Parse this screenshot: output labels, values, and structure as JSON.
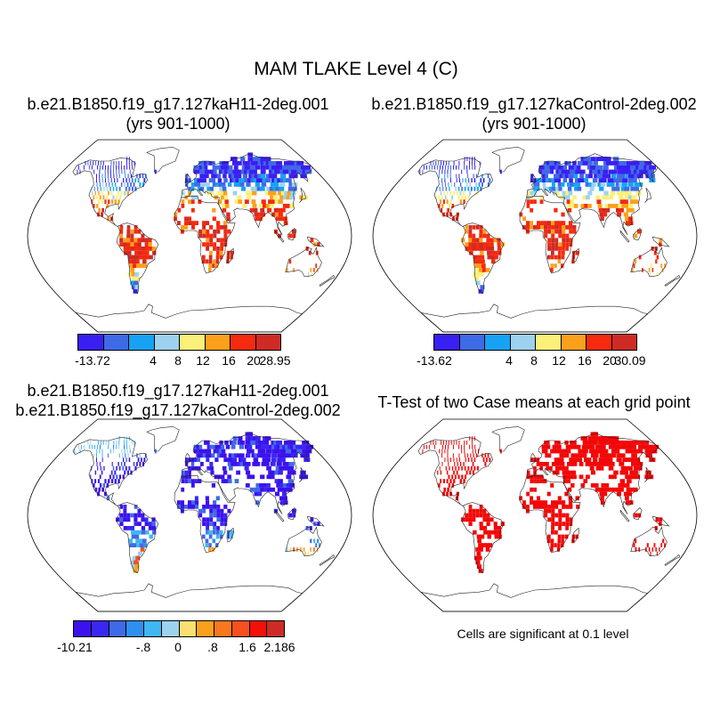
{
  "title": "MAM TLAKE Level 4 (C)",
  "panels": [
    {
      "id": "p1",
      "title_line1": "b.e21.B1850.f19_g17.127kaH11-2deg.001",
      "title_line2": "(yrs 901-1000)",
      "scheme": "abs"
    },
    {
      "id": "p2",
      "title_line1": "b.e21.B1850.f19_g17.127kaControl-2deg.002",
      "title_line2": "(yrs 901-1000)",
      "scheme": "abs"
    },
    {
      "id": "p3",
      "title_line1": "b.e21.B1850.f19_g17.127kaH11-2deg.001",
      "title_line2": "b.e21.B1850.f19_g17.127kaControl-2deg.002",
      "scheme": "diff"
    },
    {
      "id": "p4",
      "title_line1": "T-Test of two Case means at each grid point",
      "scheme": "sig"
    }
  ],
  "colorbars": [
    {
      "colors": [
        "#3a1ff2",
        "#3f6ae6",
        "#17a2f4",
        "#9dd2ee",
        "#fbf07a",
        "#fba01c",
        "#f52a0e",
        "#cf2b26"
      ],
      "labels": [
        "-13.72",
        "4",
        "8",
        "12",
        "16",
        "20",
        "28.95"
      ]
    },
    {
      "colors": [
        "#3a1ff2",
        "#3f6ae6",
        "#17a2f4",
        "#9dd2ee",
        "#fbf07a",
        "#fba01c",
        "#f52a0e",
        "#cf2b26"
      ],
      "labels": [
        "-13.62",
        "4",
        "8",
        "12",
        "16",
        "20",
        "30.09"
      ]
    },
    {
      "colors": [
        "#3b12ee",
        "#3a27f2",
        "#3f6ae6",
        "#2e8ff0",
        "#40b6f4",
        "#9dd2ee",
        "#fbe071",
        "#fba01c",
        "#f9781c",
        "#f55020",
        "#f21008",
        "#cf2b26"
      ],
      "labels": [
        "-10.21",
        "-.8",
        "0",
        ".8",
        "1.6",
        "2.186"
      ]
    }
  ],
  "significance_note": "Cells are significant at 0.1 level",
  "colors": {
    "significant": "#f20808",
    "coastline": "#222222"
  }
}
